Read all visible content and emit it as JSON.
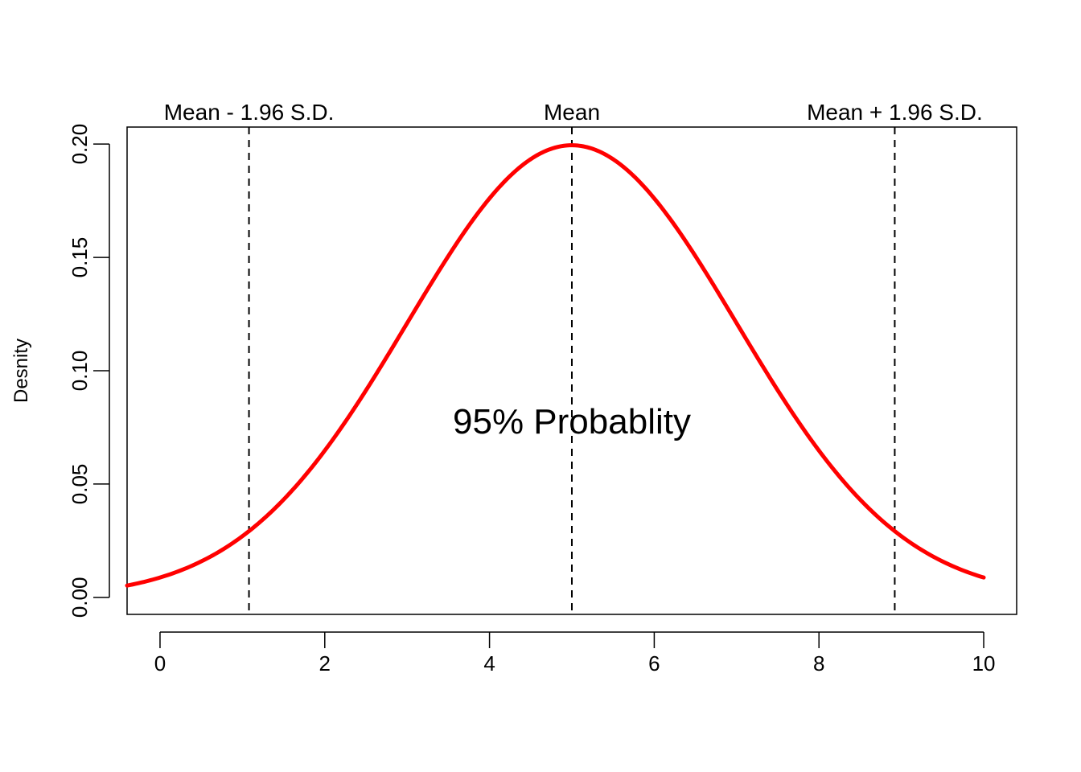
{
  "chart_data": {
    "type": "line",
    "ylabel": "Desnity",
    "xlabel": "",
    "xlim": [
      -0.4,
      10.4
    ],
    "ylim": [
      -0.0075,
      0.2075
    ],
    "xticks": [
      "0",
      "2",
      "4",
      "6",
      "8",
      "10"
    ],
    "xtick_values": [
      0,
      2,
      4,
      6,
      8,
      10
    ],
    "yticks": [
      "0.00",
      "0.05",
      "0.10",
      "0.15",
      "0.20"
    ],
    "ytick_values": [
      0.0,
      0.05,
      0.1,
      0.15,
      0.2
    ],
    "series": [
      {
        "color": "#ff0000",
        "distribution": "normal",
        "mean": 5,
        "sd": 2,
        "x_range": [
          -0.4,
          10
        ]
      }
    ],
    "reference_lines": [
      {
        "x": 1.08,
        "label": "Mean - 1.96 S.D."
      },
      {
        "x": 5,
        "label": "Mean"
      },
      {
        "x": 8.92,
        "label": "Mean + 1.96 S.D."
      }
    ],
    "annotation": {
      "text": "95% Probablity",
      "x": 5,
      "y": 0.078
    },
    "grid": false,
    "legend": "none"
  }
}
